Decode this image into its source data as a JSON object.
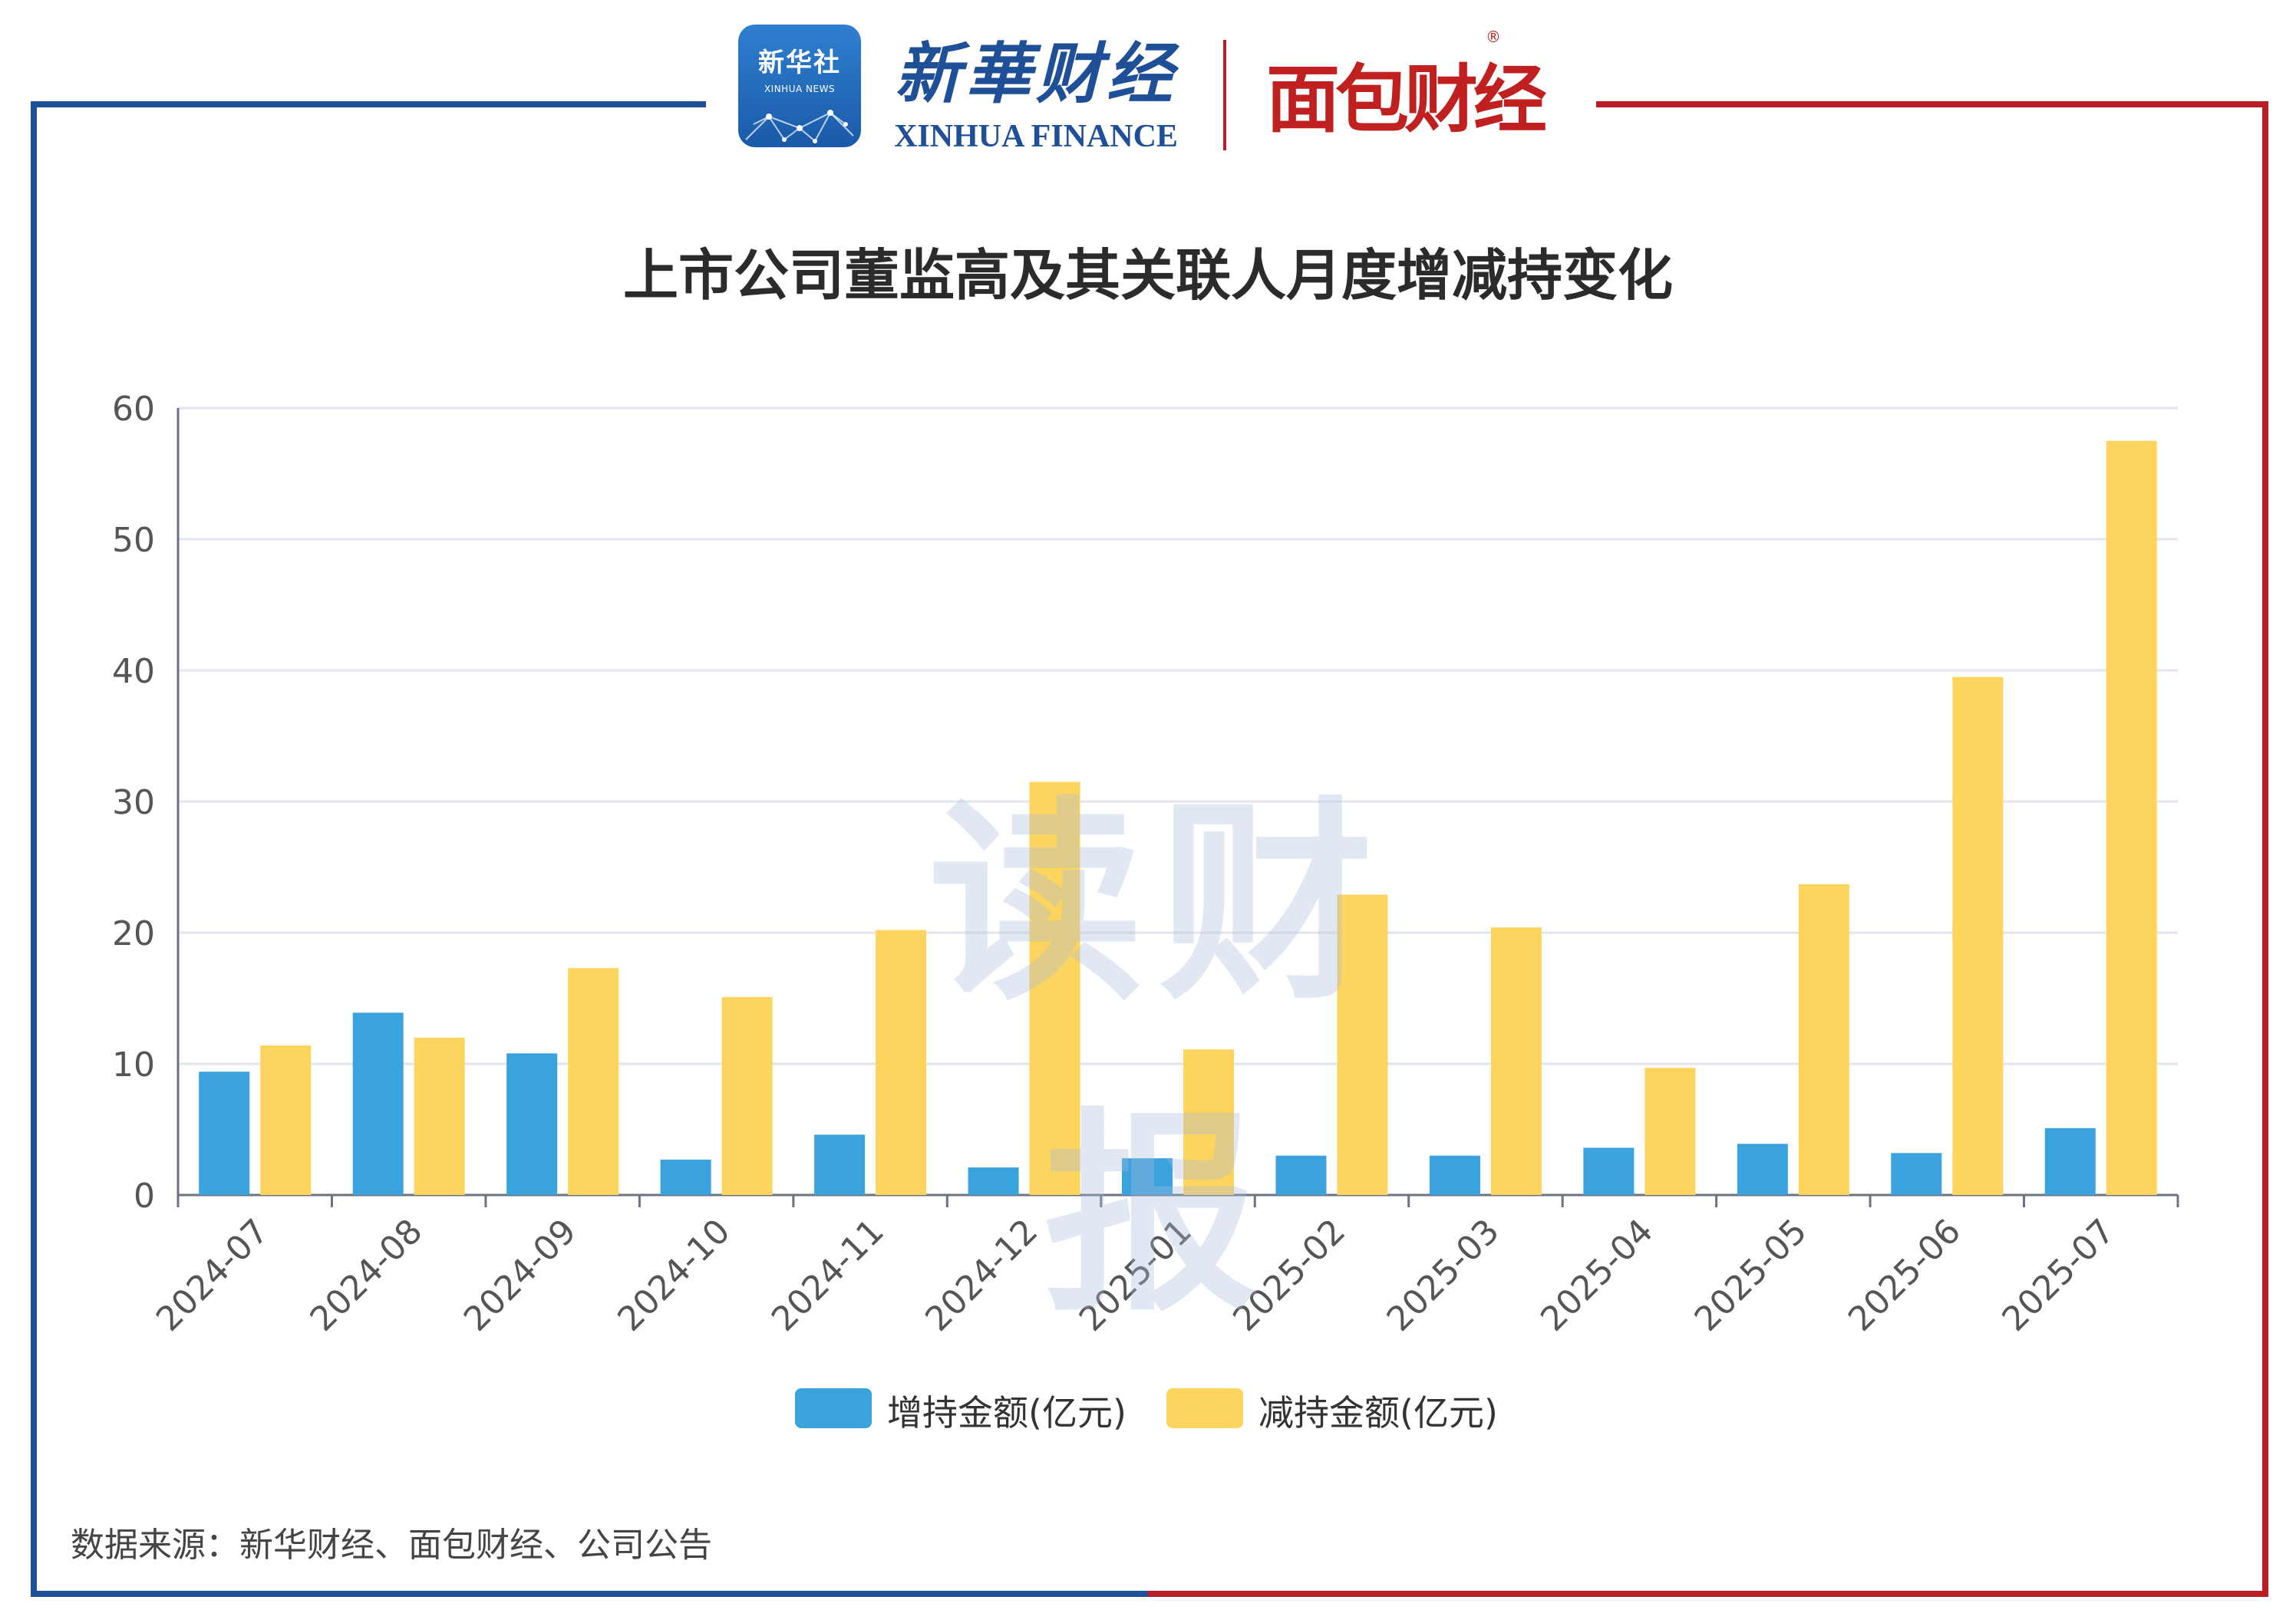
{
  "header": {
    "logo_xinhua_cn": "新华社",
    "logo_xinhua_en": "XINHUA NEWS",
    "logo_xhf_cn": "新華财经",
    "logo_xhf_en": "XINHUA FINANCE",
    "logo_mianbao": "面包财经",
    "registered_mark": "®",
    "frame_left_color": "#1f4f96",
    "frame_right_color": "#b81c25"
  },
  "watermark": "读财报",
  "source": "数据来源：新华财经、面包财经、公司公告",
  "chart_data": {
    "type": "bar",
    "title": "上市公司董监高及其关联人月度增减持变化",
    "xlabel": "",
    "ylabel": "",
    "ylim": [
      0,
      60
    ],
    "yticks": [
      0,
      10,
      20,
      30,
      40,
      50,
      60
    ],
    "grid": true,
    "legend_position": "bottom",
    "categories": [
      "2024-07",
      "2024-08",
      "2024-09",
      "2024-10",
      "2024-11",
      "2024-12",
      "2025-01",
      "2025-02",
      "2025-03",
      "2025-04",
      "2025-05",
      "2025-06",
      "2025-07"
    ],
    "series": [
      {
        "name": "增持金额(亿元)",
        "color": "#3aa2dc",
        "values": [
          9.4,
          13.9,
          10.8,
          2.7,
          4.6,
          2.1,
          2.8,
          3.0,
          3.0,
          3.6,
          3.9,
          3.2,
          5.1
        ]
      },
      {
        "name": "减持金额(亿元)",
        "color": "#fdd55e",
        "values": [
          11.4,
          12.0,
          17.3,
          15.1,
          20.2,
          31.5,
          11.1,
          22.9,
          20.4,
          9.7,
          23.7,
          39.5,
          57.5
        ]
      }
    ]
  }
}
